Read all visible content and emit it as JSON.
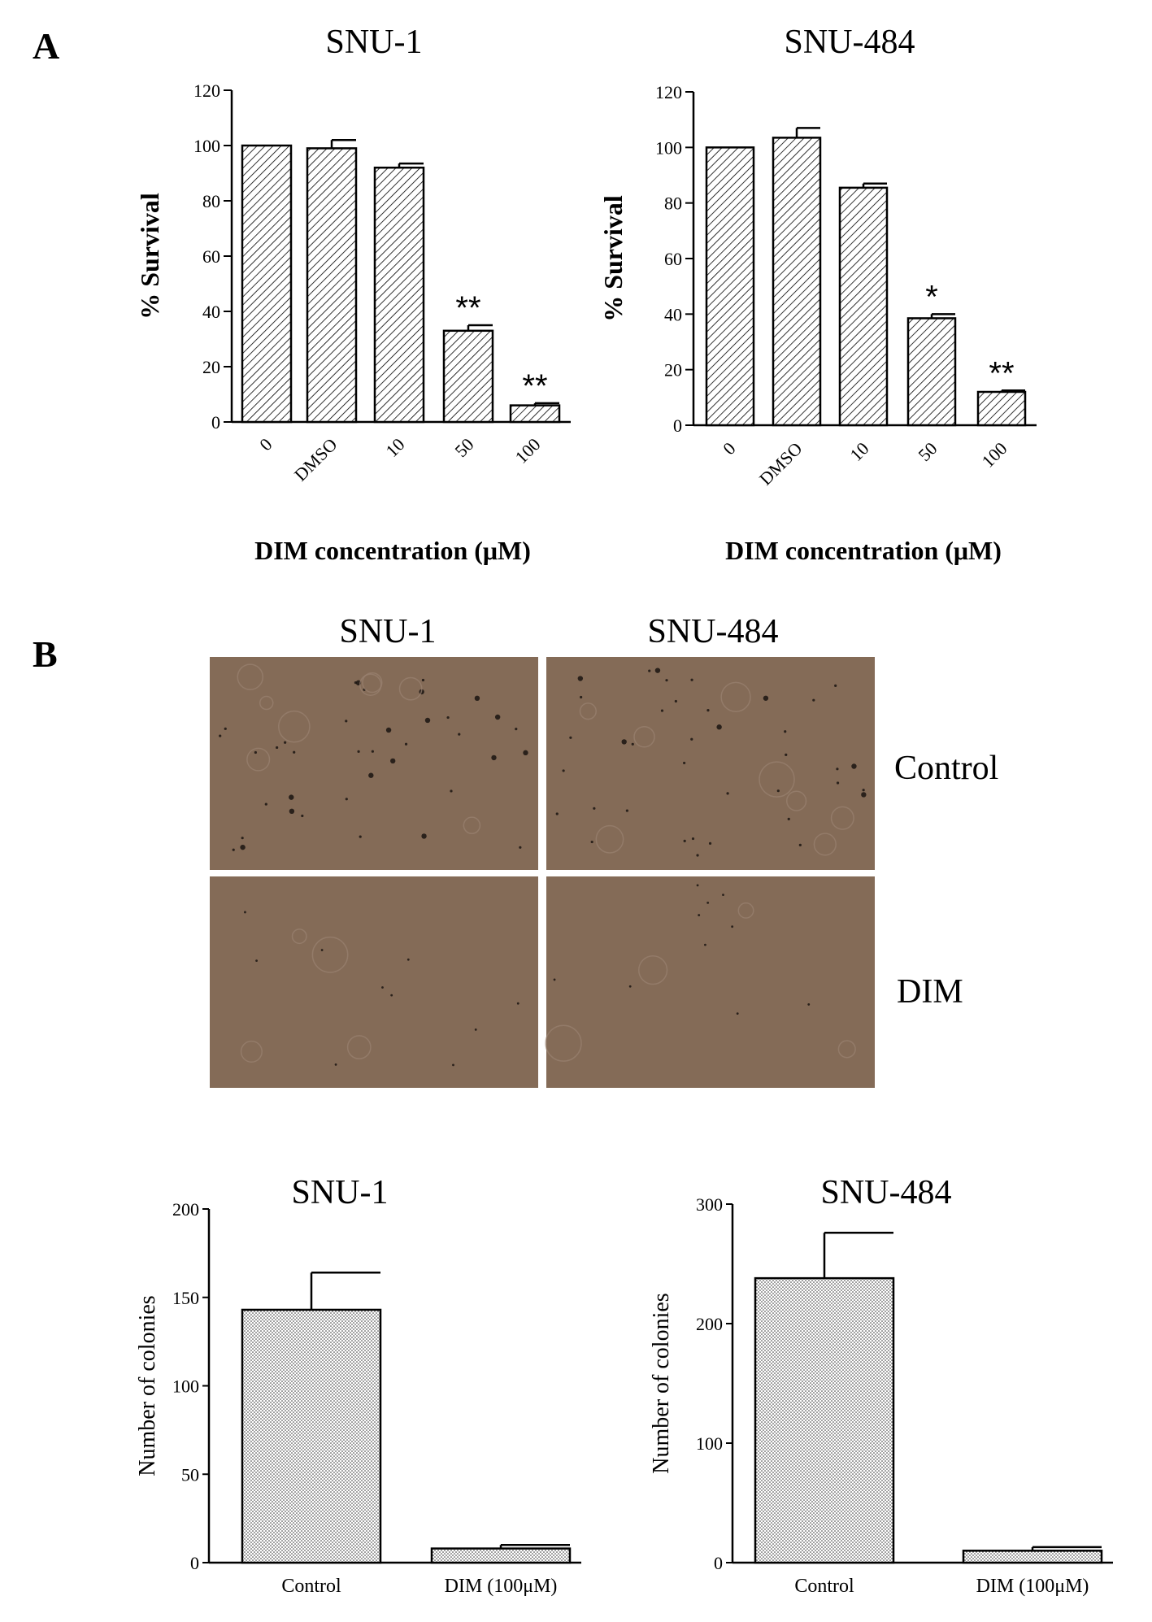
{
  "panels": {
    "a_label": "A",
    "b_label": "B"
  },
  "micrograph": {
    "columns": [
      "SNU-1",
      "SNU-484"
    ],
    "rows": [
      "Control",
      "DIM"
    ],
    "bg_color": "#846B57"
  },
  "chart_data": [
    {
      "type": "bar",
      "title": "SNU-1",
      "categories": [
        "0",
        "DMSO",
        "10",
        "50",
        "100"
      ],
      "values": [
        100,
        99,
        92,
        33,
        6
      ],
      "errors": [
        0,
        3,
        1.5,
        2,
        0.8
      ],
      "annotations": [
        "",
        "",
        "",
        "**",
        "**"
      ],
      "xlabel": "DIM concentration (μM)",
      "ylabel": "% Survival",
      "ylim": [
        0,
        120
      ],
      "yticks": [
        "0",
        "20",
        "40",
        "60",
        "80",
        "100",
        "120"
      ],
      "grid": false
    },
    {
      "type": "bar",
      "title": "SNU-484",
      "categories": [
        "0",
        "DMSO",
        "10",
        "50",
        "100"
      ],
      "values": [
        100,
        103.5,
        85.5,
        38.5,
        12
      ],
      "errors": [
        0,
        3.5,
        1.5,
        1.5,
        0.5
      ],
      "annotations": [
        "",
        "",
        "",
        "*",
        "**"
      ],
      "xlabel": "DIM concentration (μM)",
      "ylabel": "% Survival",
      "ylim": [
        0,
        120
      ],
      "yticks": [
        "0",
        "20",
        "40",
        "60",
        "80",
        "100",
        "120"
      ],
      "grid": false
    },
    {
      "type": "bar",
      "title": "SNU-1",
      "categories": [
        "Control",
        "DIM (100μM)"
      ],
      "values": [
        143,
        8
      ],
      "errors": [
        21,
        2
      ],
      "xlabel": "",
      "ylabel": "Number of colonies",
      "ylim": [
        0,
        200
      ],
      "yticks": [
        "0",
        "50",
        "100",
        "150",
        "200"
      ],
      "grid": false
    },
    {
      "type": "bar",
      "title": "SNU-484",
      "categories": [
        "Control",
        "DIM (100μM)"
      ],
      "values": [
        238,
        10
      ],
      "errors": [
        38,
        3
      ],
      "xlabel": "",
      "ylabel": "Number of colonies",
      "ylim": [
        0,
        300
      ],
      "yticks": [
        "0",
        "100",
        "200",
        "300"
      ],
      "grid": false
    }
  ]
}
